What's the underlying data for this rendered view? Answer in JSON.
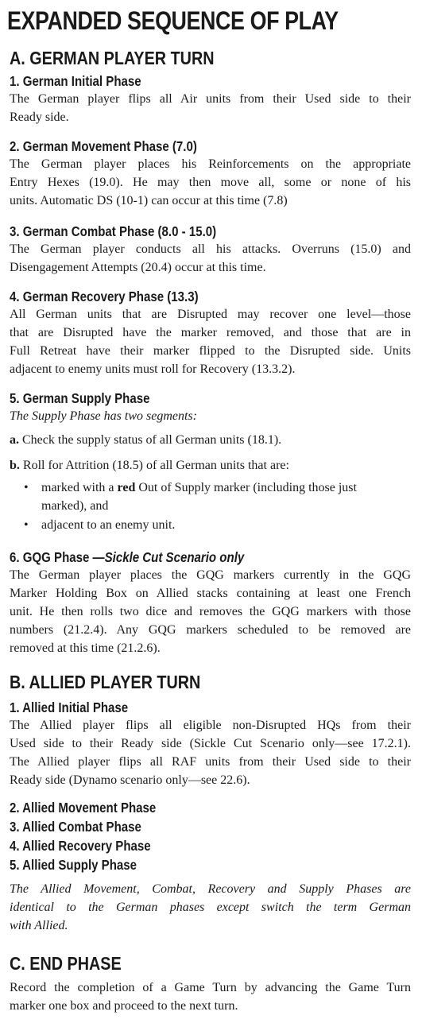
{
  "title": "EXPANDED SEQUENCE OF PLAY",
  "sectionA": {
    "heading": "A. GERMAN PLAYER TURN",
    "p1": {
      "heading": "1. German Initial Phase",
      "lines": [
        "The German player flips all Air units from their Used side to their",
        "Ready side."
      ]
    },
    "p2": {
      "heading": "2. German Movement Phase (7.0)",
      "lines": [
        "The German player places his Reinforcements on the appropriate",
        "Entry Hexes (19.0).  He may then move all, some or none of his",
        "units. Automatic DS (10-1) can occur at this time (7.8)"
      ]
    },
    "p3": {
      "heading": "3. German Combat Phase (8.0 - 15.0)",
      "lines": [
        "The German player conducts all his attacks. Overruns (15.0) and",
        "Disengagement Attempts (20.4) occur at this time."
      ]
    },
    "p4": {
      "heading": "4. German Recovery Phase (13.3)",
      "lines": [
        "All German units that are Disrupted may recover one level—those",
        "that are Disrupted have the marker removed, and those that are in",
        "Full Retreat have their marker flipped to the Disrupted side. Units",
        "adjacent to enemy units must roll for Recovery (13.3.2)."
      ]
    },
    "p5": {
      "heading": "5. German Supply Phase",
      "intro": "The Supply Phase has two segments:",
      "segA_label": "a.",
      "segA_text": "Check the supply status of all German units (18.1).",
      "segB_label": "b.",
      "segB_text": "Roll for Attrition (18.5) of all German units that are:",
      "bullet1_pre": "marked with a ",
      "bullet1_bold": "red",
      "bullet1_post": " Out of Supply marker (including those just",
      "bullet1_line2": "marked), and",
      "bullet2": "adjacent to an enemy unit."
    },
    "p6": {
      "heading_main": "6. GQG Phase —",
      "heading_italic": "Sickle Cut Scenario only",
      "lines": [
        "The German player places the GQG markers currently in the GQG",
        "Marker Holding Box on Allied stacks containing at least one French",
        "unit. He then rolls two dice and removes the GQG markers with those",
        "numbers (21.2.4). Any GQG markers scheduled to be removed are",
        "removed at this time (21.2.6)."
      ]
    }
  },
  "sectionB": {
    "heading": "B. ALLIED PLAYER TURN",
    "p1": {
      "heading": "1. Allied Initial Phase",
      "lines": [
        "The Allied player flips all eligible non-Disrupted HQs from their",
        "Used side to their Ready side (Sickle Cut Scenario only—see 17.2.1).",
        "The Allied player flips all RAF units from their Used side to their",
        "Ready side (Dynamo scenario only—see 22.6)."
      ]
    },
    "p2": "2. Allied Movement Phase",
    "p3": "3. Allied Combat Phase",
    "p4": "4. Allied Recovery Phase",
    "p5": "5. Allied Supply Phase",
    "note_lines": [
      "The Allied Movement, Combat, Recovery and Supply Phases are",
      "identical to the German phases except switch the term German",
      "with Allied."
    ]
  },
  "sectionC": {
    "heading": "C. END PHASE",
    "lines": [
      "Record the completion of a Game Turn by advancing the Game Turn",
      "marker one box and proceed to the next turn."
    ]
  }
}
